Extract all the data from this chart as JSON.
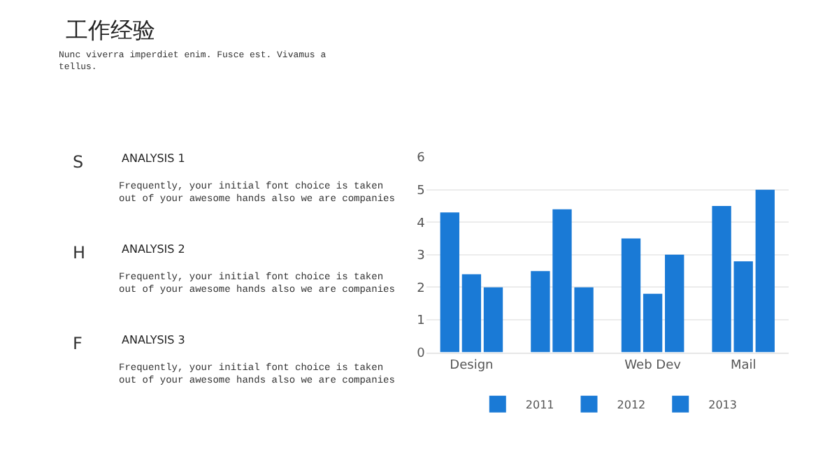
{
  "chart_data": {
    "type": "bar",
    "title": "工作经验",
    "subtitle": "Nunc viverra imperdiet enim. Fusce est. Vivamus a\ntellus.",
    "categories": [
      "Design",
      null,
      "Web Dev",
      "Mail"
    ],
    "series": [
      {
        "name": "2011",
        "color": "#1a7ad6",
        "values": [
          4.3,
          2.5,
          3.5,
          4.5
        ]
      },
      {
        "name": "2012",
        "color": "#1a7ad6",
        "values": [
          2.4,
          4.4,
          1.8,
          2.8
        ]
      },
      {
        "name": "2013",
        "color": "#1a7ad6",
        "values": [
          2.0,
          2.0,
          3.0,
          5.0
        ]
      }
    ],
    "ylim": [
      0,
      6
    ],
    "yticks": [
      0,
      1,
      2,
      3,
      4,
      5,
      6
    ],
    "grid": "y",
    "legend": "bottom",
    "annotations": [
      "S",
      "ANALYSIS 1",
      "Frequently, your initial font choice is taken\nout of your awesome hands also we are companies",
      "H",
      "ANALYSIS 2",
      "Frequently, your initial font choice is taken\nout of your awesome hands also we are companies",
      "F",
      "ANALYSIS 3",
      "Frequently, your initial font choice is taken\nout of your awesome hands also we are companies"
    ]
  }
}
